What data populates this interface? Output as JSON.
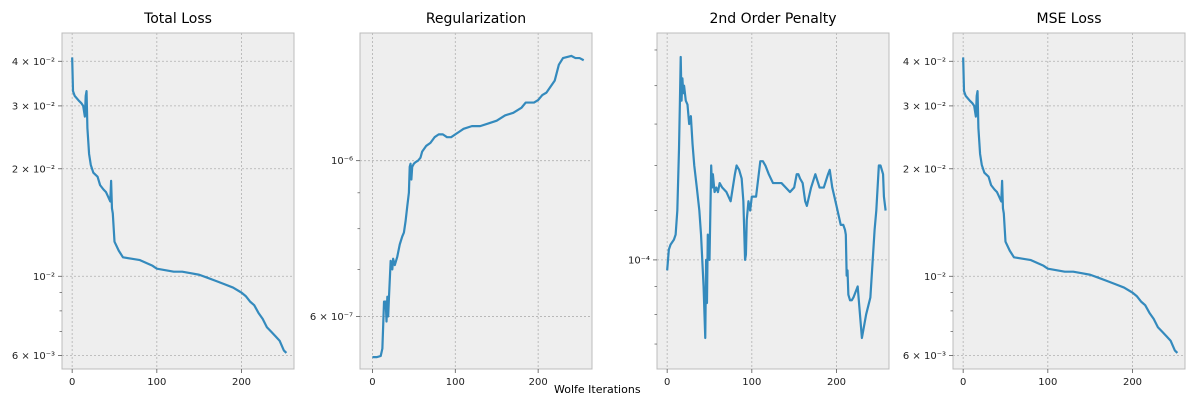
{
  "figure": {
    "xlabel": "Wolfe Iterations"
  },
  "chart_data": [
    {
      "type": "line",
      "title": "Total Loss",
      "xlabel": "",
      "ylabel": "",
      "yscale": "log",
      "xlim": [
        -12,
        262
      ],
      "ylim": [
        0.0055,
        0.048
      ],
      "x_ticks": [
        0,
        100,
        200
      ],
      "x_tick_labels": [
        "0",
        "100",
        "200"
      ],
      "y_ticks": [
        0.04,
        0.03,
        0.02,
        0.01,
        0.006
      ],
      "y_tick_labels": [
        "4 × 10⁻²",
        "3 × 10⁻²",
        "2 × 10⁻²",
        "10⁻²",
        "6 × 10⁻³"
      ],
      "y_minor": [
        0.007,
        0.008,
        0.009
      ],
      "grid": true,
      "color": "#348abd",
      "series": [
        {
          "x": [
            0,
            1,
            3,
            8,
            11,
            13,
            15,
            16,
            17,
            18,
            20,
            22,
            25,
            30,
            33,
            37,
            40,
            42,
            45,
            46,
            47,
            48,
            50,
            55,
            60,
            70,
            80,
            95,
            100,
            110,
            120,
            130,
            140,
            150,
            160,
            170,
            180,
            190,
            200,
            205,
            210,
            215,
            220,
            225,
            230,
            235,
            240,
            245,
            250,
            253
          ],
          "y": [
            0.041,
            0.033,
            0.032,
            0.031,
            0.0305,
            0.03,
            0.028,
            0.032,
            0.033,
            0.026,
            0.022,
            0.0205,
            0.0195,
            0.019,
            0.018,
            0.0175,
            0.0172,
            0.0168,
            0.0162,
            0.0185,
            0.0155,
            0.015,
            0.0125,
            0.0118,
            0.0113,
            0.0112,
            0.0111,
            0.0107,
            0.0105,
            0.0104,
            0.0103,
            0.0103,
            0.0102,
            0.0101,
            0.0099,
            0.0097,
            0.0095,
            0.0093,
            0.009,
            0.0088,
            0.0085,
            0.0083,
            0.0079,
            0.0076,
            0.0072,
            0.007,
            0.0068,
            0.0066,
            0.0062,
            0.0061
          ]
        }
      ]
    },
    {
      "type": "line",
      "title": "Regularization",
      "xlabel": "",
      "ylabel": "",
      "yscale": "log",
      "xlim": [
        -15,
        265
      ],
      "ylim": [
        5.05e-07,
        1.52e-06
      ],
      "x_ticks": [
        0,
        100,
        200
      ],
      "x_tick_labels": [
        "0",
        "100",
        "200"
      ],
      "y_ticks": [
        1e-06,
        6e-07
      ],
      "y_tick_labels": [
        "10⁻⁶",
        "6 × 10⁻⁷"
      ],
      "y_minor": [
        7e-07,
        8e-07,
        9e-07
      ],
      "grid": true,
      "color": "#348abd",
      "series": [
        {
          "x": [
            0,
            5,
            10,
            12,
            14,
            16,
            17,
            18,
            19,
            20,
            22,
            24,
            25,
            27,
            30,
            33,
            36,
            38,
            40,
            42,
            44,
            45,
            46,
            47,
            48,
            50,
            52,
            55,
            58,
            60,
            65,
            70,
            75,
            80,
            85,
            90,
            95,
            100,
            105,
            110,
            120,
            130,
            140,
            150,
            160,
            170,
            180,
            185,
            190,
            195,
            200,
            205,
            210,
            220,
            225,
            230,
            240,
            245,
            250,
            255
          ],
          "y": [
            5.25e-07,
            5.25e-07,
            5.27e-07,
            5.4e-07,
            6.3e-07,
            6.3e-07,
            5.9e-07,
            6.4e-07,
            6e-07,
            6.4e-07,
            7.2e-07,
            7e-07,
            7.25e-07,
            7.1e-07,
            7.3e-07,
            7.6e-07,
            7.8e-07,
            7.9e-07,
            8.2e-07,
            8.6e-07,
            9e-07,
            9.8e-07,
            9.9e-07,
            9.4e-07,
            9.8e-07,
            9.9e-07,
            9.95e-07,
            1e-06,
            1.01e-06,
            1.03e-06,
            1.05e-06,
            1.06e-06,
            1.08e-06,
            1.09e-06,
            1.09e-06,
            1.08e-06,
            1.08e-06,
            1.09e-06,
            1.1e-06,
            1.11e-06,
            1.12e-06,
            1.12e-06,
            1.13e-06,
            1.14e-06,
            1.16e-06,
            1.17e-06,
            1.19e-06,
            1.21e-06,
            1.21e-06,
            1.21e-06,
            1.22e-06,
            1.24e-06,
            1.25e-06,
            1.3e-06,
            1.37e-06,
            1.4e-06,
            1.41e-06,
            1.4e-06,
            1.4e-06,
            1.39e-06
          ]
        }
      ]
    },
    {
      "type": "line",
      "title": "2nd Order Penalty",
      "xlabel": "",
      "ylabel": "",
      "yscale": "log",
      "xlim": [
        -12,
        262
      ],
      "ylim": [
        8.1e-05,
        0.000155
      ],
      "x_ticks": [
        0,
        100,
        200
      ],
      "x_tick_labels": [
        "0",
        "100",
        "200"
      ],
      "y_ticks": [
        0.0001
      ],
      "y_tick_labels": [
        "10⁻⁴"
      ],
      "y_minor": [
        8.5e-05,
        9e-05,
        9.5e-05,
        0.00011,
        0.00012,
        0.00013,
        0.00014,
        0.00015
      ],
      "grid": true,
      "color": "#348abd",
      "series": [
        {
          "x": [
            0,
            2,
            4,
            8,
            10,
            12,
            14,
            15,
            16,
            17,
            18,
            19,
            20,
            22,
            24,
            26,
            28,
            30,
            32,
            35,
            38,
            40,
            43,
            45,
            46,
            47,
            48,
            50,
            52,
            53,
            54,
            56,
            58,
            60,
            62,
            65,
            70,
            75,
            80,
            82,
            85,
            88,
            90,
            92,
            93,
            94,
            96,
            98,
            100,
            105,
            110,
            113,
            116,
            120,
            125,
            130,
            135,
            140,
            145,
            150,
            153,
            155,
            157,
            160,
            163,
            165,
            170,
            175,
            180,
            185,
            190,
            192,
            195,
            200,
            205,
            208,
            210,
            211,
            212,
            213,
            214,
            216,
            218,
            220,
            225,
            230,
            235,
            240,
            245,
            247,
            250,
            252,
            255,
            256,
            258
          ],
          "y": [
            9.8e-05,
            0.000102,
            0.000103,
            0.000104,
            0.000105,
            0.00011,
            0.000124,
            0.000135,
            0.000148,
            0.000136,
            0.000142,
            0.000138,
            0.00014,
            0.000136,
            0.000135,
            0.00013,
            0.000132,
            0.000125,
            0.00012,
            0.000115,
            0.00011,
            0.000105,
            9.5e-05,
            8.6e-05,
            0.0001,
            9.2e-05,
            0.000105,
            0.0001,
            0.00012,
            0.000115,
            0.000118,
            0.000114,
            0.000115,
            0.000114,
            0.000116,
            0.000115,
            0.000114,
            0.000112,
            0.000118,
            0.00012,
            0.000119,
            0.000117,
            0.000112,
            0.0001,
            0.000101,
            0.000108,
            0.000112,
            0.00011,
            0.000113,
            0.000113,
            0.000121,
            0.000121,
            0.00012,
            0.000118,
            0.000116,
            0.000116,
            0.000116,
            0.000115,
            0.000114,
            0.000115,
            0.000118,
            0.000118,
            0.000117,
            0.000116,
            0.000112,
            0.000111,
            0.000115,
            0.000118,
            0.000115,
            0.000115,
            0.000118,
            0.000119,
            0.000115,
            0.000111,
            0.000107,
            0.000107,
            0.000106,
            0.000105,
            9.7e-05,
            9.8e-05,
            9.35e-05,
            9.25e-05,
            9.25e-05,
            9.3e-05,
            9.5e-05,
            8.6e-05,
            9e-05,
            9.3e-05,
            0.000106,
            0.00011,
            0.00012,
            0.00012,
            0.000118,
            0.000113,
            0.00011
          ]
        }
      ]
    },
    {
      "type": "line",
      "title": "MSE Loss",
      "xlabel": "",
      "ylabel": "",
      "yscale": "log",
      "xlim": [
        -12,
        262
      ],
      "ylim": [
        0.0055,
        0.048
      ],
      "x_ticks": [
        0,
        100,
        200
      ],
      "x_tick_labels": [
        "0",
        "100",
        "200"
      ],
      "y_ticks": [
        0.04,
        0.03,
        0.02,
        0.01,
        0.006
      ],
      "y_tick_labels": [
        "4 × 10⁻²",
        "3 × 10⁻²",
        "2 × 10⁻²",
        "10⁻²",
        "6 × 10⁻³"
      ],
      "y_minor": [
        0.007,
        0.008,
        0.009
      ],
      "grid": true,
      "color": "#348abd",
      "series": [
        {
          "x": [
            0,
            1,
            3,
            8,
            11,
            13,
            15,
            16,
            17,
            18,
            20,
            22,
            25,
            30,
            33,
            37,
            40,
            42,
            45,
            46,
            47,
            48,
            50,
            55,
            60,
            70,
            80,
            95,
            100,
            110,
            120,
            130,
            140,
            150,
            160,
            170,
            180,
            190,
            200,
            205,
            210,
            215,
            220,
            225,
            230,
            235,
            240,
            245,
            250,
            253
          ],
          "y": [
            0.041,
            0.033,
            0.032,
            0.031,
            0.0305,
            0.03,
            0.028,
            0.032,
            0.033,
            0.026,
            0.022,
            0.0205,
            0.0195,
            0.019,
            0.018,
            0.0175,
            0.0172,
            0.0168,
            0.0162,
            0.0185,
            0.0155,
            0.015,
            0.0125,
            0.0118,
            0.0113,
            0.0112,
            0.0111,
            0.0107,
            0.0105,
            0.0104,
            0.0103,
            0.0103,
            0.0102,
            0.0101,
            0.0099,
            0.0097,
            0.0095,
            0.0093,
            0.009,
            0.0088,
            0.0085,
            0.0083,
            0.0079,
            0.0076,
            0.0072,
            0.007,
            0.0068,
            0.0066,
            0.0062,
            0.0061
          ]
        }
      ]
    }
  ]
}
